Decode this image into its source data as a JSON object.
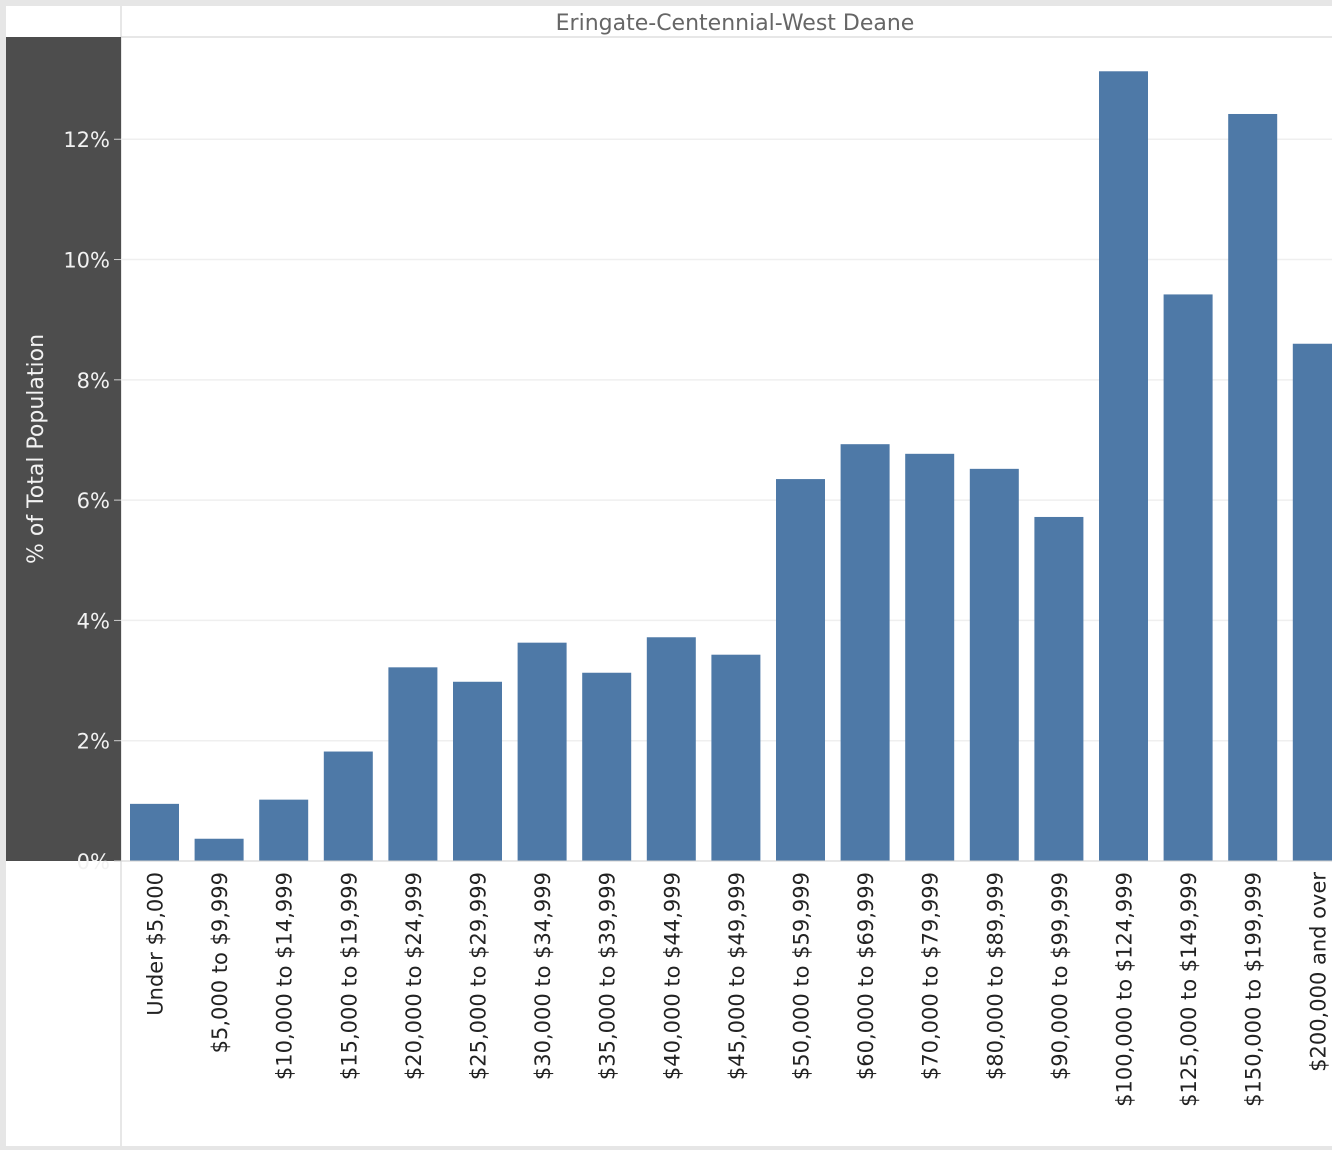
{
  "chart_data": {
    "type": "bar",
    "title": "Eringate-Centennial-West Deane",
    "xlabel": "",
    "ylabel": "% of Total Population",
    "ylim": [
      0,
      13.7
    ],
    "yticks": [
      0,
      2,
      4,
      6,
      8,
      10,
      12
    ],
    "ytick_labels": [
      "0%",
      "2%",
      "4%",
      "6%",
      "8%",
      "10%",
      "12%"
    ],
    "grid": true,
    "categories": [
      "Under $5,000",
      "$5,000 to $9,999",
      "$10,000 to $14,999",
      "$15,000 to $19,999",
      "$20,000 to $24,999",
      "$25,000 to $29,999",
      "$30,000 to $34,999",
      "$35,000 to $39,999",
      "$40,000 to $44,999",
      "$45,000 to $49,999",
      "$50,000 to $59,999",
      "$60,000 to $69,999",
      "$70,000 to $79,999",
      "$80,000 to $89,999",
      "$90,000 to $99,999",
      "$100,000 to $124,999",
      "$125,000 to $149,999",
      "$150,000 to $199,999",
      "$200,000 and over"
    ],
    "values": [
      0.95,
      0.37,
      1.02,
      1.82,
      3.22,
      2.98,
      3.63,
      3.13,
      3.72,
      3.43,
      6.35,
      6.93,
      6.77,
      6.52,
      5.72,
      13.13,
      9.42,
      12.42,
      8.6
    ],
    "colors": {
      "bar": "#4e79a7",
      "axis_panel": "#4d4d4d",
      "axis_text": "#f2f2f2",
      "label_text": "#222222",
      "title_text": "#666666",
      "grid": "#efefef",
      "background": "#ffffff",
      "frame": "#e6e6e6"
    }
  }
}
